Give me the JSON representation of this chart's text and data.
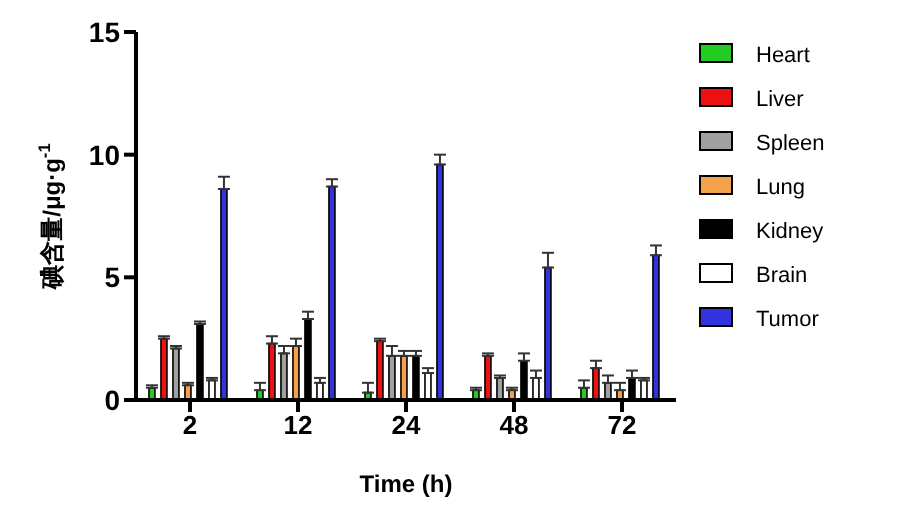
{
  "chart_data": {
    "type": "bar",
    "xlabel": "Time (h)",
    "ylabel": "碘含量/μg·g$^{-1}$",
    "categories": [
      "2",
      "12",
      "24",
      "48",
      "72"
    ],
    "ylim": [
      0,
      15
    ],
    "yticks": [
      0,
      5,
      10,
      15
    ],
    "grid": false,
    "legend": "right",
    "series": [
      {
        "name": "Heart",
        "color": "#22cc22",
        "values": [
          0.5,
          0.4,
          0.3,
          0.4,
          0.5
        ],
        "errors": [
          [
            0.5,
            0.6
          ],
          [
            0.4,
            0.7
          ],
          [
            0.3,
            0.7
          ],
          [
            0.4,
            0.5
          ],
          [
            0.5,
            0.8
          ]
        ]
      },
      {
        "name": "Liver",
        "color": "#ee1111",
        "values": [
          2.5,
          2.3,
          2.4,
          1.8,
          1.3
        ],
        "errors": [
          [
            2.5,
            2.6
          ],
          [
            2.3,
            2.6
          ],
          [
            2.4,
            2.5
          ],
          [
            1.8,
            1.9
          ],
          [
            1.3,
            1.6
          ]
        ]
      },
      {
        "name": "Spleen",
        "color": "#a0a0a0",
        "values": [
          2.1,
          1.9,
          1.8,
          0.9,
          0.7
        ],
        "errors": [
          [
            2.1,
            2.2
          ],
          [
            1.9,
            2.2
          ],
          [
            1.8,
            2.2
          ],
          [
            0.9,
            1.0
          ],
          [
            0.7,
            1.0
          ]
        ]
      },
      {
        "name": "Lung",
        "color": "#f5a04a",
        "values": [
          0.6,
          2.2,
          1.8,
          0.4,
          0.4
        ],
        "errors": [
          [
            0.6,
            0.7
          ],
          [
            2.2,
            2.5
          ],
          [
            1.8,
            2.0
          ],
          [
            0.4,
            0.5
          ],
          [
            0.4,
            0.7
          ]
        ]
      },
      {
        "name": "Kidney",
        "color": "#000000",
        "values": [
          3.1,
          3.3,
          1.8,
          1.6,
          0.9
        ],
        "errors": [
          [
            3.1,
            3.2
          ],
          [
            3.3,
            3.6
          ],
          [
            1.8,
            2.0
          ],
          [
            1.6,
            1.9
          ],
          [
            0.9,
            1.2
          ]
        ]
      },
      {
        "name": "Brain",
        "color": "#ffffff",
        "values": [
          0.8,
          0.7,
          1.1,
          0.9,
          0.8
        ],
        "errors": [
          [
            0.8,
            0.9
          ],
          [
            0.7,
            0.9
          ],
          [
            1.1,
            1.3
          ],
          [
            0.9,
            1.2
          ],
          [
            0.8,
            0.9
          ]
        ]
      },
      {
        "name": "Tumor",
        "color": "#3333dd",
        "values": [
          8.6,
          8.7,
          9.6,
          5.4,
          5.9
        ],
        "errors": [
          [
            8.6,
            9.1
          ],
          [
            8.7,
            9.0
          ],
          [
            9.6,
            10.0
          ],
          [
            5.4,
            6.0
          ],
          [
            5.9,
            6.3
          ]
        ]
      }
    ]
  }
}
